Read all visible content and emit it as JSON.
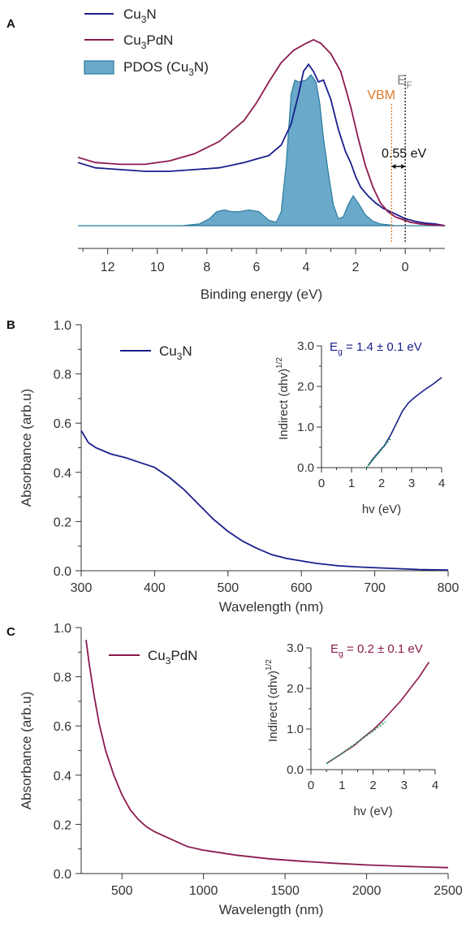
{
  "colors": {
    "cu3n": "#1a1f8c",
    "cu3pdn": "#8c1a4f",
    "pdos_fill": "#6aa9c9",
    "pdos_stroke": "#2b7a9e",
    "vbm": "#e07a2a",
    "ef": "#808080",
    "fit": "#2aa05a",
    "axis": "#333333"
  },
  "chart_data": [
    {
      "panel": "A",
      "type": "line",
      "xlabel": "Binding energy (eV)",
      "xlim": [
        13.2,
        -1.6
      ],
      "x_reversed": true,
      "xticks": [
        12,
        10,
        8,
        6,
        4,
        2,
        0
      ],
      "y_axis_shown": false,
      "legend_position": "top-left",
      "series": [
        {
          "name": "Cu",
          "sub": "3",
          "tail": "N",
          "color_key": "cu3n",
          "x": [
            13.2,
            12.5,
            11.5,
            10.5,
            9.5,
            8.5,
            7.5,
            6.5,
            6.0,
            5.5,
            5.0,
            4.6,
            4.3,
            4.1,
            3.9,
            3.7,
            3.5,
            3.3,
            3.0,
            2.7,
            2.4,
            2.2,
            2.0,
            1.8,
            1.5,
            1.2,
            0.9,
            0.6,
            0.3,
            0.0,
            -0.4,
            -0.8,
            -1.2,
            -1.6
          ],
          "y": [
            0.36,
            0.33,
            0.32,
            0.31,
            0.31,
            0.32,
            0.33,
            0.36,
            0.38,
            0.4,
            0.46,
            0.58,
            0.75,
            0.88,
            0.92,
            0.88,
            0.82,
            0.83,
            0.72,
            0.55,
            0.42,
            0.36,
            0.28,
            0.22,
            0.17,
            0.13,
            0.1,
            0.08,
            0.06,
            0.04,
            0.025,
            0.015,
            0.01,
            0.0
          ]
        },
        {
          "name": "Cu",
          "sub": "3",
          "tail": "PdN",
          "color_key": "cu3pdn",
          "x": [
            13.2,
            12.5,
            11.5,
            10.5,
            9.5,
            8.5,
            7.5,
            6.5,
            6.0,
            5.5,
            5.0,
            4.5,
            4.0,
            3.7,
            3.4,
            3.0,
            2.6,
            2.2,
            1.9,
            1.6,
            1.3,
            1.0,
            0.7,
            0.4,
            0.1,
            -0.2,
            -0.6,
            -1.0,
            -1.6
          ],
          "y": [
            0.39,
            0.36,
            0.35,
            0.35,
            0.37,
            0.41,
            0.48,
            0.6,
            0.7,
            0.82,
            0.93,
            1.0,
            1.04,
            1.06,
            1.04,
            0.98,
            0.88,
            0.68,
            0.5,
            0.34,
            0.22,
            0.13,
            0.08,
            0.05,
            0.035,
            0.02,
            0.01,
            0.005,
            0.0
          ]
        },
        {
          "name": "PDOS (Cu",
          "sub": "3",
          "tail": "N)",
          "color_key": "pdos_fill",
          "filled": true,
          "x": [
            13.2,
            9.0,
            8.3,
            7.9,
            7.6,
            7.3,
            7.0,
            6.7,
            6.3,
            5.9,
            5.5,
            5.2,
            5.0,
            4.8,
            4.7,
            4.6,
            4.45,
            4.3,
            4.0,
            3.8,
            3.6,
            3.45,
            3.3,
            3.1,
            2.9,
            2.7,
            2.5,
            2.3,
            2.1,
            1.9,
            1.6,
            1.3,
            1.0,
            0.7,
            0.4,
            0.0,
            -1.6
          ],
          "y": [
            0.0,
            0.0,
            0.01,
            0.04,
            0.08,
            0.09,
            0.08,
            0.08,
            0.09,
            0.08,
            0.03,
            0.02,
            0.08,
            0.35,
            0.55,
            0.75,
            0.83,
            0.82,
            0.83,
            0.86,
            0.82,
            0.7,
            0.5,
            0.3,
            0.12,
            0.04,
            0.05,
            0.12,
            0.17,
            0.13,
            0.06,
            0.025,
            0.01,
            0.005,
            0.0,
            0.0,
            0.0
          ]
        }
      ],
      "annotations": {
        "ef": {
          "label": "E",
          "sub": "F",
          "x": 0.0
        },
        "vbm": {
          "label": "VBM",
          "x": 0.55
        },
        "gap": {
          "label": "0.55 eV"
        }
      }
    },
    {
      "panel": "B",
      "type": "line",
      "xlabel": "Wavelength (nm)",
      "ylabel": "Absorbance (arb.u)",
      "xlim": [
        300,
        800
      ],
      "ylim": [
        0,
        1.0
      ],
      "xticks": [
        300,
        400,
        500,
        600,
        700,
        800
      ],
      "yticks": [
        "0.0",
        "0.2",
        "0.4",
        "0.6",
        "0.8",
        "1.0"
      ],
      "legend_position": "top-left",
      "series": [
        {
          "name": "Cu",
          "sub": "3",
          "tail": "N",
          "color_key": "cu3n",
          "x": [
            300,
            310,
            320,
            340,
            360,
            380,
            400,
            420,
            440,
            460,
            480,
            500,
            520,
            540,
            560,
            580,
            600,
            620,
            650,
            680,
            720,
            760,
            800
          ],
          "y": [
            0.57,
            0.52,
            0.5,
            0.475,
            0.46,
            0.44,
            0.42,
            0.38,
            0.33,
            0.27,
            0.21,
            0.16,
            0.12,
            0.09,
            0.065,
            0.05,
            0.04,
            0.03,
            0.02,
            0.015,
            0.01,
            0.005,
            0.003
          ]
        }
      ],
      "inset": {
        "xlabel": "hv (eV)",
        "ylabel": "Indirect (αhv)",
        "ylabel_sup": "1/2",
        "xlim": [
          0,
          4
        ],
        "ylim": [
          0,
          3.0
        ],
        "xticks": [
          "0",
          "1",
          "2",
          "3",
          "4"
        ],
        "yticks": [
          "0.0",
          "1.0",
          "2.0",
          "3.0"
        ],
        "label": {
          "pre": "E",
          "sub": "g",
          "post": " = 1.4 ± 0.1 eV"
        },
        "curve": {
          "x": [
            1.55,
            1.7,
            1.9,
            2.1,
            2.3,
            2.5,
            2.7,
            2.9,
            3.1,
            3.4,
            3.7,
            4.0
          ],
          "y": [
            0.05,
            0.2,
            0.38,
            0.55,
            0.8,
            1.1,
            1.4,
            1.6,
            1.73,
            1.9,
            2.05,
            2.22
          ]
        },
        "fit": {
          "x": [
            1.5,
            1.7,
            1.9,
            2.1,
            2.3
          ],
          "y": [
            0.0,
            0.18,
            0.36,
            0.54,
            0.72
          ]
        }
      }
    },
    {
      "panel": "C",
      "type": "line",
      "xlabel": "Wavelength (nm)",
      "ylabel": "Absorbance (arb.u)",
      "xlim": [
        250,
        2500
      ],
      "ylim": [
        0,
        1.0
      ],
      "xticks": [
        500,
        1000,
        1500,
        2000,
        2500
      ],
      "yticks": [
        "0.0",
        "0.2",
        "0.4",
        "0.6",
        "0.8",
        "1.0"
      ],
      "legend_position": "top-left",
      "series": [
        {
          "name": "Cu",
          "sub": "3",
          "tail": "PdN",
          "color_key": "cu3pdn",
          "x": [
            280,
            300,
            330,
            360,
            400,
            450,
            500,
            550,
            600,
            650,
            700,
            800,
            900,
            1000,
            1200,
            1400,
            1600,
            1800,
            2000,
            2200,
            2400,
            2500
          ],
          "y": [
            0.95,
            0.85,
            0.72,
            0.61,
            0.5,
            0.4,
            0.32,
            0.26,
            0.22,
            0.19,
            0.17,
            0.14,
            0.11,
            0.095,
            0.075,
            0.06,
            0.05,
            0.042,
            0.035,
            0.03,
            0.026,
            0.024
          ]
        }
      ],
      "inset": {
        "xlabel": "hv (eV)",
        "ylabel": "Indirect (αhv)",
        "ylabel_sup": "1/2",
        "xlim": [
          0,
          4
        ],
        "ylim": [
          0,
          3.0
        ],
        "xticks": [
          "0",
          "1",
          "2",
          "3",
          "4"
        ],
        "yticks": [
          "0.0",
          "1.0",
          "2.0",
          "3.0"
        ],
        "label": {
          "pre": "E",
          "sub": "g",
          "post": " = 0.2 ± 0.1 eV"
        },
        "curve": {
          "x": [
            0.5,
            0.8,
            1.1,
            1.4,
            1.7,
            2.0,
            2.3,
            2.6,
            2.9,
            3.2,
            3.5,
            3.8
          ],
          "y": [
            0.15,
            0.3,
            0.45,
            0.6,
            0.8,
            0.98,
            1.2,
            1.45,
            1.7,
            2.0,
            2.3,
            2.65
          ]
        },
        "fit": {
          "x": [
            0.5,
            1.0,
            1.5,
            2.0,
            2.4
          ],
          "y": [
            0.15,
            0.4,
            0.68,
            0.95,
            1.18
          ]
        }
      }
    }
  ],
  "panel_labels": [
    "A",
    "B",
    "C"
  ]
}
